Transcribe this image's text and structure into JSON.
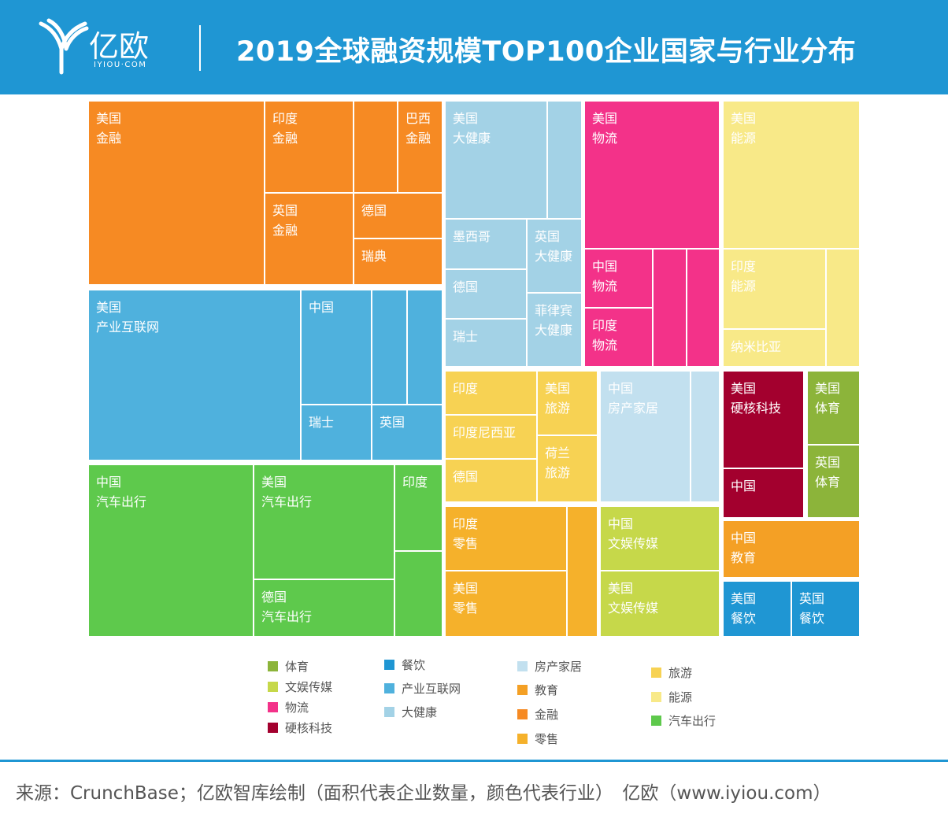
{
  "header": {
    "title": "2019全球融资规模TOP100企业国家与行业分布",
    "brand_name": "亿欧",
    "brand_domain": "IYIOU·COM"
  },
  "chart_data": {
    "type": "treemap",
    "title": "2019全球融资规模TOP100企业国家与行业分布",
    "legend": [
      {
        "label": "体育",
        "color": "#8cb43a"
      },
      {
        "label": "文娱传媒",
        "color": "#c6d84a"
      },
      {
        "label": "物流",
        "color": "#f33289"
      },
      {
        "label": "硬核科技",
        "color": "#a3002e"
      },
      {
        "label": "餐饮",
        "color": "#1f96d3"
      },
      {
        "label": "产业互联网",
        "color": "#4fb1dd"
      },
      {
        "label": "大健康",
        "color": "#a3d2e6"
      },
      {
        "label": "房产家居",
        "color": "#c2e0ef"
      },
      {
        "label": "教育",
        "color": "#f4a025"
      },
      {
        "label": "金融",
        "color": "#f68a23"
      },
      {
        "label": "零售",
        "color": "#f5b12b"
      },
      {
        "label": "旅游",
        "color": "#f7d253"
      },
      {
        "label": "能源",
        "color": "#f8e988"
      },
      {
        "label": "汽车出行",
        "color": "#5ec94c"
      }
    ],
    "blocks": [
      {
        "industry": "金融",
        "label1": "美国",
        "label2": "金融"
      },
      {
        "industry": "金融",
        "label1": "印度",
        "label2": "金融"
      },
      {
        "industry": "金融",
        "label1": "",
        "label2": ""
      },
      {
        "industry": "金融",
        "label1": "巴西",
        "label2": "金融"
      },
      {
        "industry": "金融",
        "label1": "英国",
        "label2": "金融"
      },
      {
        "industry": "金融",
        "label1": "德国",
        "label2": ""
      },
      {
        "industry": "金融",
        "label1": "瑞典",
        "label2": ""
      },
      {
        "industry": "产业互联网",
        "label1": "美国",
        "label2": "产业互联网"
      },
      {
        "industry": "产业互联网",
        "label1": "中国",
        "label2": ""
      },
      {
        "industry": "产业互联网",
        "label1": "",
        "label2": ""
      },
      {
        "industry": "产业互联网",
        "label1": "",
        "label2": ""
      },
      {
        "industry": "产业互联网",
        "label1": "瑞士",
        "label2": ""
      },
      {
        "industry": "产业互联网",
        "label1": "英国",
        "label2": ""
      },
      {
        "industry": "汽车出行",
        "label1": "中国",
        "label2": "汽车出行"
      },
      {
        "industry": "汽车出行",
        "label1": "美国",
        "label2": "汽车出行"
      },
      {
        "industry": "汽车出行",
        "label1": "德国",
        "label2": "汽车出行"
      },
      {
        "industry": "汽车出行",
        "label1": "印度",
        "label2": ""
      },
      {
        "industry": "汽车出行",
        "label1": "",
        "label2": ""
      },
      {
        "industry": "大健康",
        "label1": "美国",
        "label2": "大健康"
      },
      {
        "industry": "大健康",
        "label1": "",
        "label2": ""
      },
      {
        "industry": "大健康",
        "label1": "墨西哥",
        "label2": ""
      },
      {
        "industry": "大健康",
        "label1": "德国",
        "label2": ""
      },
      {
        "industry": "大健康",
        "label1": "瑞士",
        "label2": ""
      },
      {
        "industry": "大健康",
        "label1": "英国",
        "label2": "大健康"
      },
      {
        "industry": "大健康",
        "label1": "菲律宾",
        "label2": "大健康"
      },
      {
        "industry": "物流",
        "label1": "美国",
        "label2": "物流"
      },
      {
        "industry": "物流",
        "label1": "中国",
        "label2": "物流"
      },
      {
        "industry": "物流",
        "label1": "印度",
        "label2": "物流"
      },
      {
        "industry": "物流",
        "label1": "",
        "label2": ""
      },
      {
        "industry": "物流",
        "label1": "",
        "label2": ""
      },
      {
        "industry": "能源",
        "label1": "美国",
        "label2": "能源"
      },
      {
        "industry": "能源",
        "label1": "印度",
        "label2": "能源"
      },
      {
        "industry": "能源",
        "label1": "",
        "label2": ""
      },
      {
        "industry": "能源",
        "label1": "纳米比亚",
        "label2": ""
      },
      {
        "industry": "旅游",
        "label1": "印度",
        "label2": ""
      },
      {
        "industry": "旅游",
        "label1": "印度尼西亚",
        "label2": ""
      },
      {
        "industry": "旅游",
        "label1": "德国",
        "label2": ""
      },
      {
        "industry": "旅游",
        "label1": "美国",
        "label2": "旅游"
      },
      {
        "industry": "旅游",
        "label1": "荷兰",
        "label2": "旅游"
      },
      {
        "industry": "房产家居",
        "label1": "中国",
        "label2": "房产家居"
      },
      {
        "industry": "房产家居",
        "label1": "",
        "label2": ""
      },
      {
        "industry": "零售",
        "label1": "印度",
        "label2": "零售"
      },
      {
        "industry": "零售",
        "label1": "美国",
        "label2": "零售"
      },
      {
        "industry": "零售",
        "label1": "",
        "label2": ""
      },
      {
        "industry": "文娱传媒",
        "label1": "中国",
        "label2": "文娱传媒"
      },
      {
        "industry": "文娱传媒",
        "label1": "美国",
        "label2": "文娱传媒"
      },
      {
        "industry": "硬核科技",
        "label1": "美国",
        "label2": "硬核科技"
      },
      {
        "industry": "硬核科技",
        "label1": "中国",
        "label2": ""
      },
      {
        "industry": "体育",
        "label1": "美国",
        "label2": "体育"
      },
      {
        "industry": "体育",
        "label1": "英国",
        "label2": "体育"
      },
      {
        "industry": "教育",
        "label1": "中国",
        "label2": "教育"
      },
      {
        "industry": "餐饮",
        "label1": "美国",
        "label2": "餐饮"
      },
      {
        "industry": "餐饮",
        "label1": "英国",
        "label2": "餐饮"
      }
    ]
  },
  "footer": {
    "source": "来源：CrunchBase；亿欧智库绘制（面积代表企业数量，颜色代表行业）　亿欧（www.iyiou.com）"
  }
}
